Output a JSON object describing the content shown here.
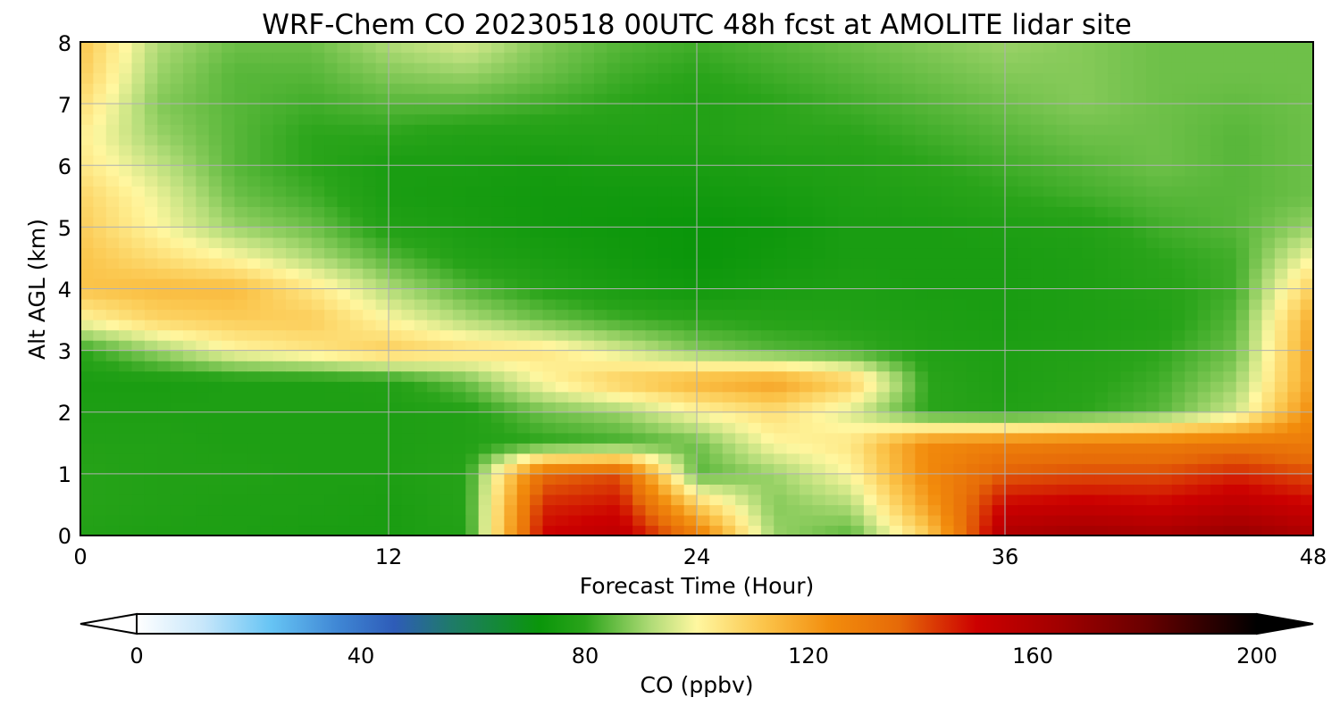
{
  "chart_data": {
    "type": "heatmap",
    "title": "WRF-Chem CO  20230518 00UTC 48h fcst at AMOLITE lidar site",
    "xlabel": "Forecast Time (Hour)",
    "ylabel": "Alt AGL (km)",
    "xlim": [
      0,
      48
    ],
    "ylim": [
      0,
      8
    ],
    "xticks": [
      "0",
      "12",
      "24",
      "36",
      "48"
    ],
    "yticks": [
      "0",
      "1",
      "2",
      "3",
      "4",
      "5",
      "6",
      "7",
      "8"
    ],
    "grid": true,
    "x": [
      0,
      3,
      6,
      9,
      12,
      15,
      18,
      21,
      24,
      27,
      30,
      33,
      36,
      39,
      42,
      45,
      48
    ],
    "y": [
      0,
      0.5,
      1,
      1.5,
      2,
      2.5,
      3,
      3.5,
      4,
      4.5,
      5,
      5.5,
      6,
      6.5,
      7,
      7.5,
      8
    ],
    "z": [
      [
        78,
        77,
        77,
        76,
        76,
        78,
        150,
        155,
        130,
        90,
        84,
        110,
        160,
        165,
        162,
        168,
        160
      ],
      [
        79,
        78,
        77,
        77,
        76,
        79,
        145,
        148,
        110,
        88,
        92,
        120,
        150,
        152,
        150,
        155,
        150
      ],
      [
        79,
        78,
        78,
        77,
        77,
        79,
        135,
        140,
        84,
        90,
        100,
        125,
        138,
        140,
        140,
        145,
        140
      ],
      [
        78,
        78,
        77,
        77,
        77,
        78,
        80,
        82,
        86,
        100,
        104,
        125,
        128,
        130,
        130,
        132,
        130
      ],
      [
        77,
        77,
        77,
        77,
        77,
        78,
        86,
        90,
        100,
        106,
        96,
        80,
        78,
        80,
        84,
        95,
        125
      ],
      [
        76,
        76,
        77,
        77,
        78,
        86,
        100,
        110,
        116,
        120,
        110,
        80,
        77,
        79,
        82,
        90,
        120
      ],
      [
        80,
        90,
        100,
        104,
        110,
        106,
        104,
        96,
        88,
        84,
        82,
        78,
        77,
        78,
        80,
        86,
        120
      ],
      [
        100,
        108,
        110,
        110,
        100,
        92,
        86,
        82,
        80,
        79,
        78,
        77,
        76,
        77,
        78,
        84,
        118
      ],
      [
        112,
        114,
        114,
        104,
        92,
        84,
        79,
        76,
        74,
        76,
        77,
        76,
        76,
        77,
        79,
        82,
        110
      ],
      [
        112,
        106,
        100,
        92,
        84,
        78,
        76,
        74,
        72,
        74,
        76,
        76,
        76,
        77,
        80,
        82,
        100
      ],
      [
        110,
        100,
        90,
        86,
        78,
        76,
        74,
        73,
        72,
        73,
        76,
        76,
        77,
        78,
        82,
        84,
        90
      ],
      [
        108,
        98,
        86,
        82,
        76,
        75,
        74,
        74,
        74,
        75,
        77,
        78,
        80,
        82,
        84,
        84,
        86
      ],
      [
        104,
        94,
        84,
        80,
        76,
        76,
        75,
        76,
        76,
        77,
        78,
        80,
        82,
        84,
        86,
        84,
        86
      ],
      [
        102,
        90,
        84,
        80,
        80,
        78,
        78,
        78,
        78,
        80,
        80,
        82,
        84,
        86,
        86,
        84,
        86
      ],
      [
        106,
        88,
        84,
        82,
        84,
        84,
        82,
        80,
        78,
        80,
        82,
        84,
        86,
        88,
        86,
        85,
        86
      ],
      [
        110,
        90,
        84,
        84,
        88,
        90,
        86,
        82,
        80,
        82,
        84,
        86,
        88,
        88,
        86,
        86,
        86
      ],
      [
        112,
        92,
        86,
        86,
        92,
        96,
        88,
        84,
        82,
        84,
        86,
        88,
        90,
        88,
        86,
        86,
        86
      ]
    ],
    "colorbar": {
      "label": "CO  (ppbv)",
      "min": 0,
      "max": 200,
      "ticks": [
        "0",
        "40",
        "80",
        "120",
        "160",
        "200"
      ],
      "extend": "both",
      "stops": [
        {
          "v": 0,
          "c": "#ffffff"
        },
        {
          "v": 12,
          "c": "#c6e6fa"
        },
        {
          "v": 24,
          "c": "#66c4f4"
        },
        {
          "v": 36,
          "c": "#3f86d4"
        },
        {
          "v": 46,
          "c": "#2e5cb8"
        },
        {
          "v": 56,
          "c": "#1f7a6a"
        },
        {
          "v": 72,
          "c": "#0a960a"
        },
        {
          "v": 80,
          "c": "#2aa41a"
        },
        {
          "v": 92,
          "c": "#b2dc78"
        },
        {
          "v": 100,
          "c": "#fff7a0"
        },
        {
          "v": 112,
          "c": "#fbc44a"
        },
        {
          "v": 124,
          "c": "#f28c0c"
        },
        {
          "v": 136,
          "c": "#e66a08"
        },
        {
          "v": 150,
          "c": "#cc0000"
        },
        {
          "v": 165,
          "c": "#a00000"
        },
        {
          "v": 180,
          "c": "#6a0000"
        },
        {
          "v": 192,
          "c": "#2a0000"
        },
        {
          "v": 200,
          "c": "#000000"
        }
      ]
    }
  }
}
